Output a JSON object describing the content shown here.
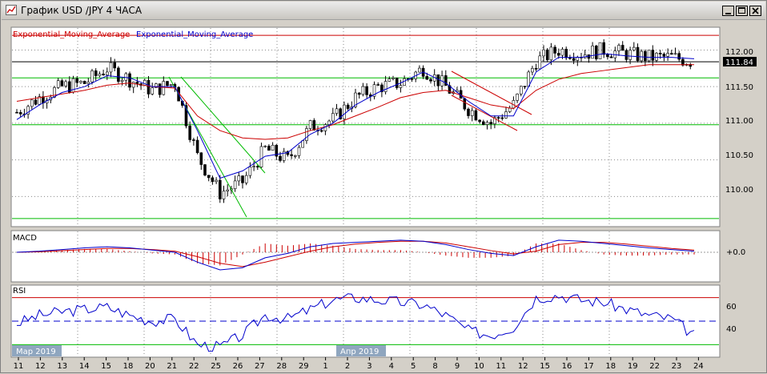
{
  "window": {
    "title": "График USD /JPY  4 ЧАСА",
    "minimize_icon": "minimize-icon",
    "maximize_icon": "maximize-icon",
    "close_icon": "close-icon"
  },
  "colors": {
    "background": "#ffffff",
    "ema_slow": "#cc0000",
    "ema_fast": "#0000cc",
    "macd_line": "#0000cc",
    "signal_line": "#cc0000",
    "rsi_line": "#0000cc",
    "level_green": "#00bb00",
    "level_red": "#cc0000",
    "level_black": "#000000",
    "grid": "#888888"
  },
  "legend": {
    "ema1": "Exponential_Moving_Average",
    "ema2": "Exponential_Moving_Average"
  },
  "price_axis": {
    "labels": [
      "112.00",
      "111.50",
      "111.00",
      "110.50",
      "110.00"
    ],
    "current_price": "111.84"
  },
  "macd": {
    "label": "MACD",
    "zero_label": "+0.0"
  },
  "rsi": {
    "label": "RSI",
    "labels": [
      "60",
      "40"
    ]
  },
  "month_labels": [
    "Мар 2019",
    "Апр 2019"
  ],
  "date_labels": [
    "11",
    "12",
    "13",
    "14",
    "15",
    "18",
    "20",
    "21",
    "22",
    "25",
    "26",
    "27",
    "28",
    "29",
    "1",
    "2",
    "3",
    "4",
    "5",
    "8",
    "9",
    "10",
    "11",
    "12",
    "15",
    "16",
    "17",
    "18",
    "19",
    "22",
    "23",
    "24"
  ],
  "chart_data": {
    "type": "line",
    "instrument": "USD /JPY",
    "timeframe": "4 ЧАСА",
    "price": {
      "x": [
        "11",
        "12",
        "13",
        "14",
        "15",
        "18",
        "20",
        "21",
        "22",
        "25",
        "26",
        "27",
        "28",
        "29",
        "1",
        "2",
        "3",
        "4",
        "5",
        "8",
        "9",
        "10",
        "11",
        "12",
        "15",
        "16",
        "17",
        "18",
        "19",
        "22",
        "23"
      ],
      "close": [
        111.15,
        111.35,
        111.5,
        111.55,
        111.75,
        111.6,
        111.45,
        111.55,
        110.55,
        110.05,
        110.2,
        110.65,
        110.5,
        110.95,
        111.05,
        111.35,
        111.5,
        111.55,
        111.75,
        111.5,
        111.2,
        111.0,
        111.25,
        111.85,
        112.0,
        111.95,
        112.0,
        111.95,
        111.9,
        111.9,
        111.84
      ],
      "ema_fast": [
        111.05,
        111.25,
        111.42,
        111.5,
        111.65,
        111.62,
        111.5,
        111.5,
        110.9,
        110.25,
        110.35,
        110.55,
        110.6,
        110.85,
        111.0,
        111.25,
        111.42,
        111.55,
        111.7,
        111.55,
        111.3,
        111.1,
        111.1,
        111.7,
        111.9,
        111.9,
        111.95,
        111.92,
        111.9,
        111.9,
        111.88
      ],
      "ema_slow": [
        111.3,
        111.35,
        111.4,
        111.45,
        111.52,
        111.55,
        111.5,
        111.48,
        111.1,
        110.9,
        110.8,
        110.78,
        110.8,
        110.9,
        110.98,
        111.1,
        111.22,
        111.35,
        111.42,
        111.45,
        111.35,
        111.25,
        111.2,
        111.45,
        111.6,
        111.68,
        111.72,
        111.76,
        111.8,
        111.8,
        111.8
      ],
      "levels": [
        112.2,
        111.62,
        110.98,
        109.7
      ],
      "ylim": [
        109.6,
        112.3
      ]
    },
    "macd": {
      "macd_line": [
        0.0,
        0.02,
        0.05,
        0.08,
        0.1,
        0.08,
        0.04,
        0.0,
        -0.18,
        -0.32,
        -0.28,
        -0.1,
        -0.02,
        0.1,
        0.16,
        0.18,
        0.2,
        0.22,
        0.2,
        0.14,
        0.05,
        -0.02,
        -0.06,
        0.1,
        0.22,
        0.2,
        0.16,
        0.12,
        0.08,
        0.05,
        0.02
      ],
      "signal_line": [
        0.0,
        0.01,
        0.03,
        0.05,
        0.07,
        0.07,
        0.05,
        0.02,
        -0.08,
        -0.2,
        -0.26,
        -0.18,
        -0.08,
        0.02,
        0.1,
        0.15,
        0.18,
        0.2,
        0.2,
        0.17,
        0.1,
        0.03,
        -0.03,
        0.02,
        0.14,
        0.18,
        0.18,
        0.15,
        0.11,
        0.07,
        0.04
      ]
    },
    "rsi": {
      "values": [
        48,
        55,
        58,
        60,
        62,
        55,
        50,
        52,
        30,
        28,
        38,
        55,
        52,
        60,
        68,
        70,
        68,
        66,
        64,
        55,
        42,
        38,
        45,
        70,
        72,
        68,
        66,
        60,
        55,
        52,
        38
      ],
      "levels": [
        70,
        50,
        30
      ],
      "ylim": [
        20,
        80
      ]
    }
  }
}
